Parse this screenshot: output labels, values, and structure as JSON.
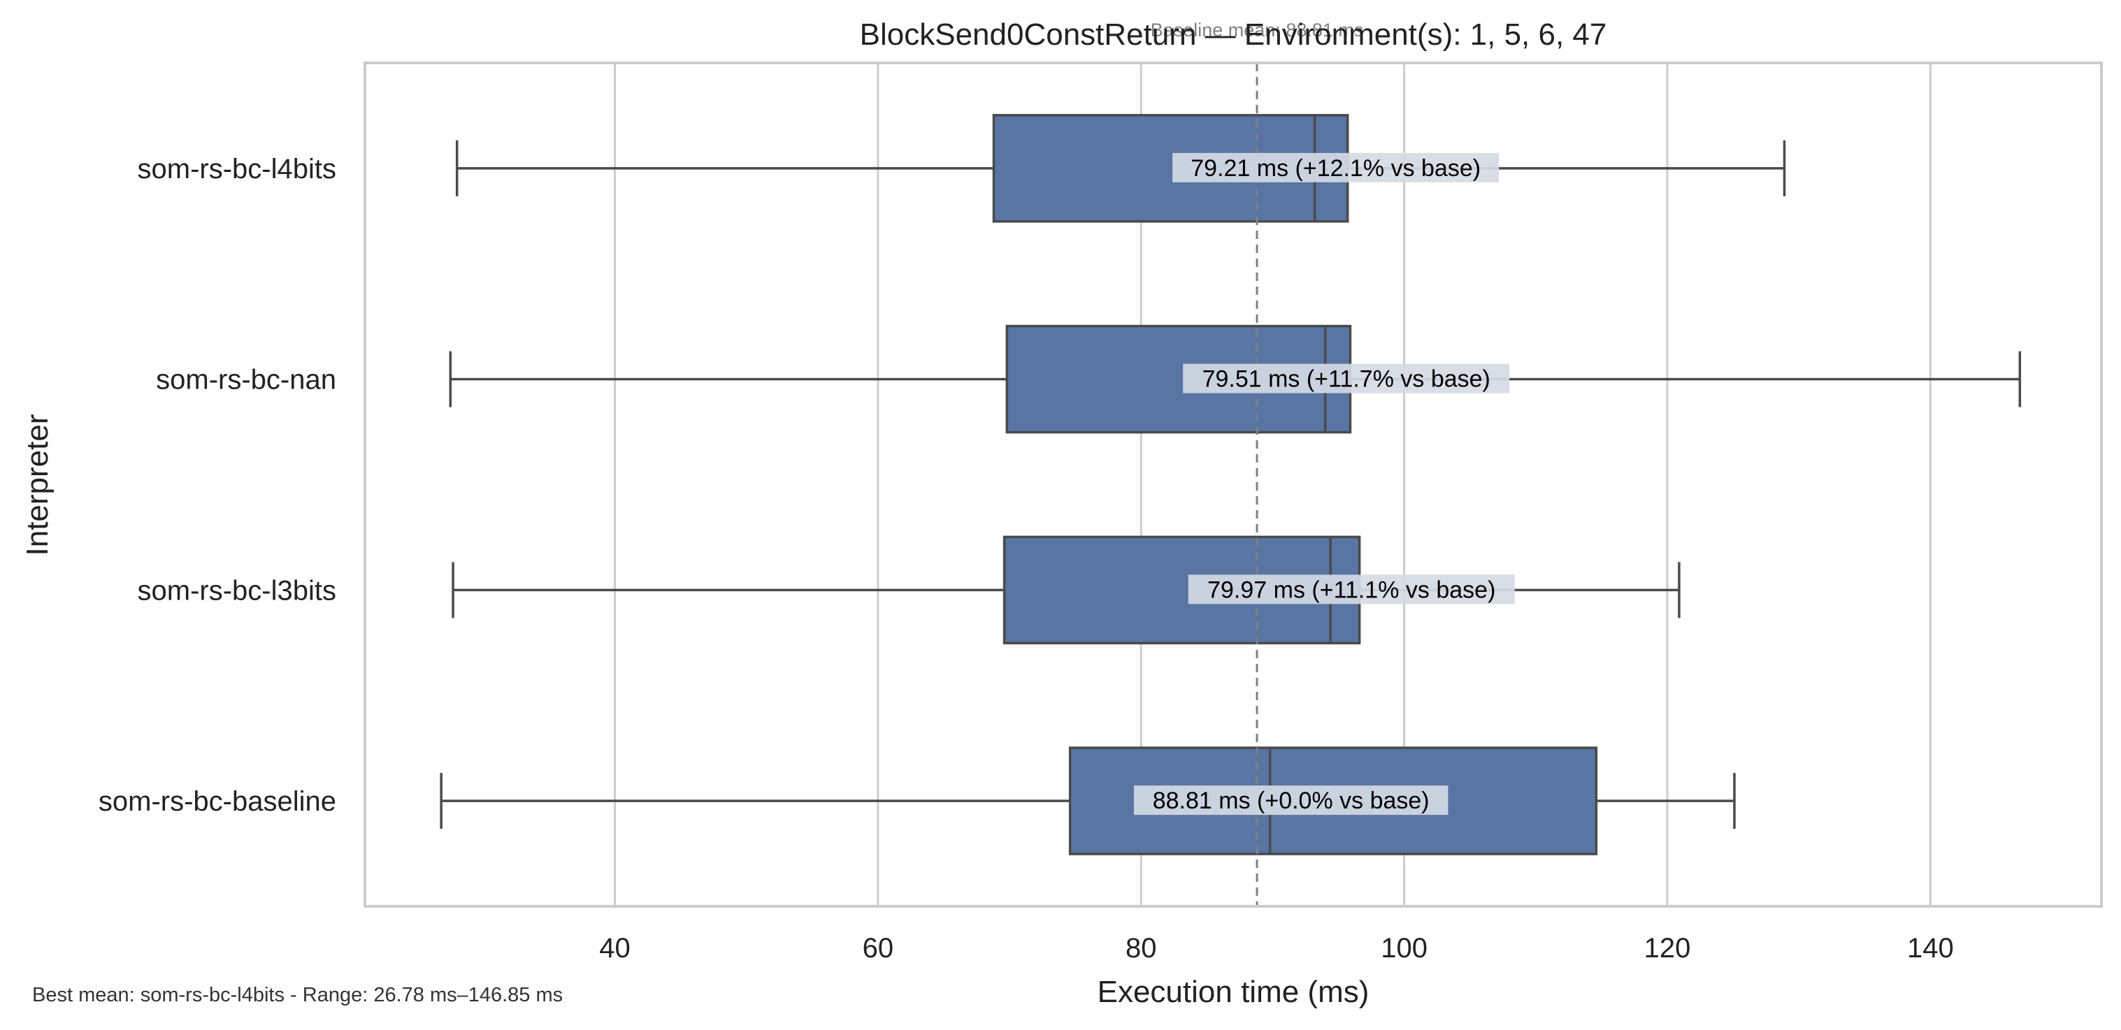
{
  "chart_data": {
    "type": "box",
    "orientation": "horizontal",
    "title": "BlockSend0ConstReturn — Environment(s): 1, 5, 6, 47",
    "xlabel": "Execution time (ms)",
    "ylabel": "Interpreter",
    "xlim": [
      21,
      153
    ],
    "xticks": [
      40,
      60,
      80,
      100,
      120,
      140
    ],
    "grid": "vertical",
    "box_color": "#5875a4",
    "line_color": "#4a4a4a",
    "label_bg_color": "#d5dae4",
    "baseline": {
      "value": 88.81,
      "label": "Baseline mean: 88.81 ms",
      "color": "#808080"
    },
    "categories": [
      "som-rs-bc-l4bits",
      "som-rs-bc-nan",
      "som-rs-bc-l3bits",
      "som-rs-bc-baseline"
    ],
    "boxes": [
      {
        "name": "som-rs-bc-l4bits",
        "whisker_low": 28.0,
        "q1": 68.8,
        "median": 93.2,
        "q3": 95.7,
        "whisker_high": 128.9,
        "mean": 79.21,
        "label": "79.21 ms  (+12.1% vs base)"
      },
      {
        "name": "som-rs-bc-nan",
        "whisker_low": 27.5,
        "q1": 69.8,
        "median": 94.0,
        "q3": 95.9,
        "whisker_high": 146.8,
        "mean": 79.51,
        "label": "79.51 ms  (+11.7% vs base)"
      },
      {
        "name": "som-rs-bc-l3bits",
        "whisker_low": 27.7,
        "q1": 69.6,
        "median": 94.4,
        "q3": 96.6,
        "whisker_high": 120.9,
        "mean": 79.97,
        "label": "79.97 ms  (+11.1% vs base)"
      },
      {
        "name": "som-rs-bc-baseline",
        "whisker_low": 26.8,
        "q1": 74.6,
        "median": 89.8,
        "q3": 114.6,
        "whisker_high": 125.1,
        "mean": 88.81,
        "label": "88.81 ms  (+0.0% vs base)"
      }
    ]
  },
  "footer": "Best mean: som-rs-bc-l4bits - Range: 26.78 ms–146.85 ms"
}
